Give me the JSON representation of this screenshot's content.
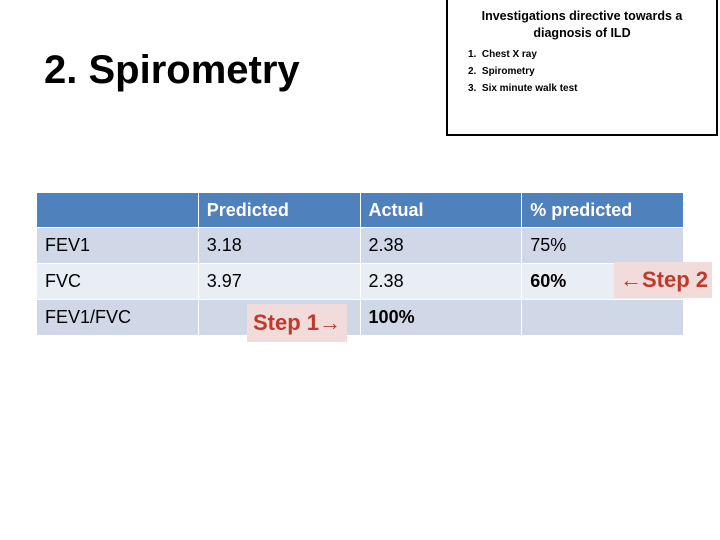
{
  "slide": {
    "title": "2. Spirometry"
  },
  "info_box": {
    "heading": "Investigations directive towards a diagnosis of ILD",
    "items": [
      "1.  Chest X ray",
      "2.  Spirometry",
      "3.  Six minute walk test"
    ]
  },
  "table": {
    "headers": [
      "",
      "Predicted",
      "Actual",
      "% predicted"
    ],
    "rows": [
      {
        "label": "FEV1",
        "predicted": "3.18",
        "actual": "2.38",
        "percent": "75%"
      },
      {
        "label": "FVC",
        "predicted": "3.97",
        "actual": "2.38",
        "percent": "60%"
      },
      {
        "label": "FEV1/FVC",
        "predicted": "",
        "actual": "100%",
        "percent": ""
      }
    ]
  },
  "annotations": {
    "step1": "Step 1→",
    "step2": "←Step 2"
  },
  "colors": {
    "header_bg": "#4f81bd",
    "row_odd_bg": "#d0d8e8",
    "row_even_bg": "#e9edf4",
    "step_bg": "#f2dcdb",
    "step_text": "#c0392b"
  }
}
